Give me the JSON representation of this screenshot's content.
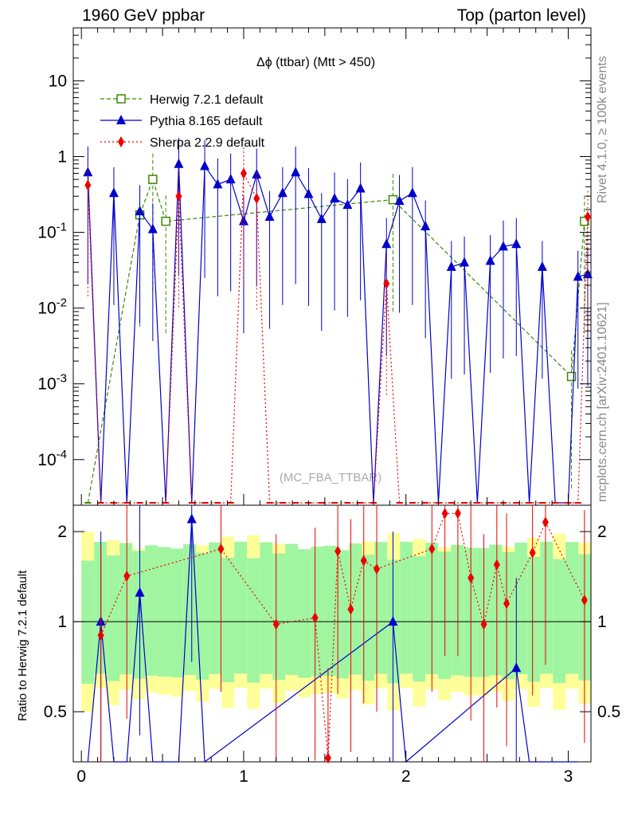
{
  "header": {
    "left": "1960 GeV ppbar",
    "right": "Top (parton level)"
  },
  "side_labels": {
    "rivet": "Rivet 4.1.0, ≥ 100k events",
    "mcplots": "mcplots.cern.ch [arXiv:2401.10621]"
  },
  "watermark": "(MC_FBA_TTBAR)",
  "colors": {
    "herwig": "#3a8a00",
    "pythia": "#0000cc",
    "sherpa": "#ee0000",
    "band_green": "#a0f5a0",
    "band_yellow": "#ffff99"
  },
  "chart_data": [
    {
      "type": "line",
      "title": "Δϕ (ttbar) (Mtt > 450)",
      "xlabel": "",
      "ylabel": "",
      "yscale": "log",
      "xlim": [
        -0.05,
        3.14
      ],
      "ylim": [
        2.5e-05,
        50
      ],
      "y_ticks": [
        0.0001,
        0.001,
        0.01,
        0.1,
        1,
        10
      ],
      "y_tick_labels": [
        "10^-4",
        "10^-3",
        "10^-2",
        "10^-1",
        "1",
        "10"
      ],
      "legend": [
        {
          "label": "Herwig 7.2.1 default",
          "series": "herwig"
        },
        {
          "label": "Pythia 8.165 default",
          "series": "pythia"
        },
        {
          "label": "Sherpa 2.2.9 default",
          "series": "sherpa"
        }
      ],
      "legend_position": "top-left",
      "series": [
        {
          "name": "Herwig 7.2.1 default",
          "key": "herwig",
          "x": [
            0.04,
            0.36,
            0.44,
            0.52,
            1.92,
            3.02,
            3.1
          ],
          "values": [
            0.0,
            0.17,
            0.5,
            0.14,
            0.27,
            0.00125,
            0.14
          ]
        },
        {
          "name": "Pythia 8.165 default",
          "key": "pythia",
          "x": [
            0.04,
            0.12,
            0.2,
            0.28,
            0.36,
            0.44,
            0.52,
            0.6,
            0.68,
            0.76,
            0.84,
            0.92,
            1.0,
            1.08,
            1.16,
            1.24,
            1.32,
            1.4,
            1.48,
            1.56,
            1.64,
            1.72,
            1.8,
            1.88,
            1.96,
            2.04,
            2.12,
            2.2,
            2.28,
            2.36,
            2.44,
            2.52,
            2.6,
            2.68,
            2.76,
            2.84,
            2.92,
            3.0,
            3.06,
            3.12
          ],
          "values": [
            0.62,
            0.0,
            0.33,
            0.0,
            0.19,
            0.11,
            0.0,
            0.8,
            0.0,
            0.75,
            0.43,
            0.5,
            0.14,
            0.58,
            0.16,
            0.33,
            0.62,
            0.32,
            0.15,
            0.28,
            0.23,
            0.38,
            0.0,
            0.07,
            0.26,
            0.33,
            0.12,
            0.0,
            0.035,
            0.04,
            0.0,
            0.042,
            0.065,
            0.07,
            0.0,
            0.035,
            0.0,
            0.0,
            0.026,
            0.028
          ]
        },
        {
          "name": "Sherpa 2.2.9 default",
          "key": "sherpa",
          "x": [
            0.04,
            0.12,
            0.2,
            0.28,
            0.36,
            0.44,
            0.52,
            0.6,
            0.68,
            0.76,
            0.84,
            0.92,
            1.0,
            1.08,
            1.16,
            1.24,
            1.32,
            1.4,
            1.48,
            1.56,
            1.64,
            1.72,
            1.8,
            1.88,
            1.96,
            2.04,
            2.12,
            2.2,
            2.28,
            2.36,
            2.44,
            2.52,
            2.6,
            2.68,
            2.76,
            2.84,
            2.92,
            3.0,
            3.06,
            3.12
          ],
          "values": [
            0.42,
            0.0,
            0.0,
            0.0,
            0.0,
            0.0,
            0.0,
            0.3,
            0.0,
            0.0,
            0.0,
            0.0,
            0.6,
            0.28,
            0.0,
            0.0,
            0.0,
            0.0,
            0.0,
            0.0,
            0.0,
            0.0,
            0.0,
            0.021,
            0.0,
            0.0,
            0.0,
            0.0,
            0.0,
            0.0,
            0.0,
            0.0,
            0.0,
            0.0,
            0.0,
            0.0,
            0.0,
            0.0,
            0.0,
            0.16
          ]
        }
      ]
    },
    {
      "type": "line",
      "title": "",
      "xlabel": "",
      "ylabel": "Ratio to Herwig 7.2.1 default",
      "yscale": "log",
      "xlim": [
        -0.05,
        3.14
      ],
      "ylim": [
        0.34,
        2.45
      ],
      "x_ticks": [
        0,
        1,
        2,
        3
      ],
      "x_tick_labels": [
        "0",
        "1",
        "2",
        "3"
      ],
      "y_ticks": [
        0.5,
        1,
        2
      ],
      "y_tick_labels": [
        "0.5",
        "1",
        "2"
      ],
      "reference_line": 1,
      "series": [
        {
          "name": "Pythia 8.165 default",
          "key": "pythia",
          "x": [
            0.04,
            0.12,
            0.2,
            0.28,
            0.36,
            0.44,
            0.52,
            0.6,
            0.68,
            0.76,
            1.92,
            2.0,
            2.68,
            2.76,
            3.06
          ],
          "values": [
            0.0,
            1.0,
            0.0,
            0.0,
            1.25,
            0.0,
            0.0,
            0.0,
            2.2,
            0.0,
            1.0,
            0.0,
            0.7,
            0.0,
            0.0
          ]
        },
        {
          "name": "Sherpa 2.2.9 default",
          "key": "sherpa",
          "x": [
            0.12,
            0.28,
            0.86,
            1.2,
            1.44,
            1.52,
            1.58,
            1.66,
            1.74,
            1.82,
            2.16,
            2.24,
            2.32,
            2.4,
            2.48,
            2.56,
            2.62,
            2.78,
            2.86,
            3.1
          ],
          "values": [
            0.9,
            1.42,
            1.75,
            0.98,
            1.03,
            0.35,
            1.72,
            1.1,
            1.6,
            1.5,
            1.75,
            2.3,
            2.3,
            1.4,
            0.98,
            1.55,
            1.15,
            1.7,
            2.15,
            1.18
          ]
        }
      ]
    }
  ]
}
